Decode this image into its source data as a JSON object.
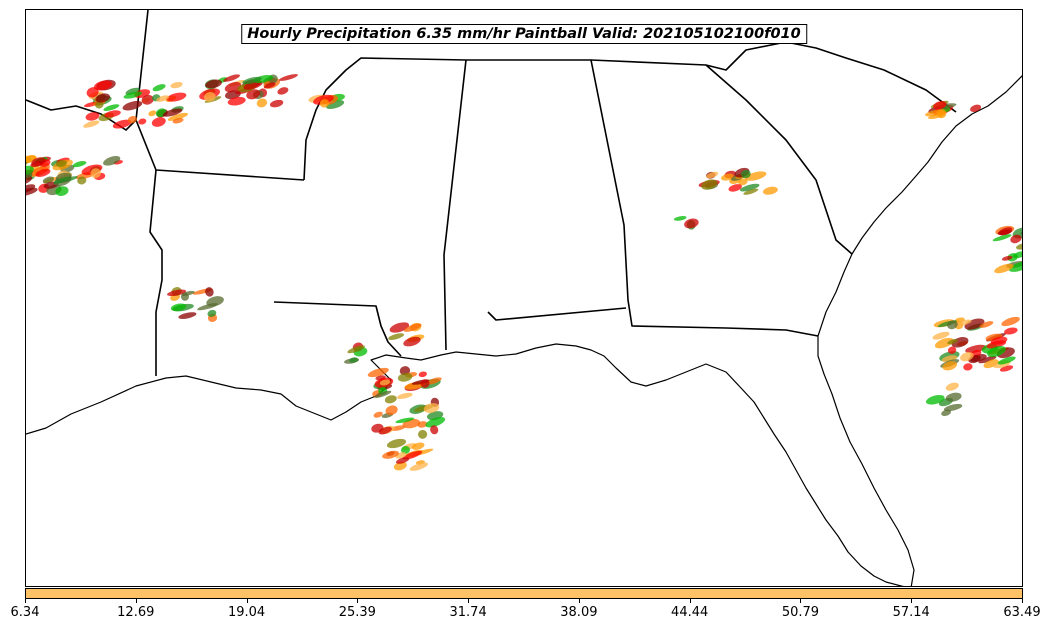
{
  "title": "Hourly Precipitation 6.35 mm/hr Paintball Valid: 202105102100f010",
  "colorbar": {
    "color": "#ffc266",
    "ticks": [
      "6.34",
      "12.69",
      "19.04",
      "25.39",
      "31.74",
      "38.09",
      "44.44",
      "50.79",
      "57.14",
      "63.49"
    ]
  },
  "member_colors": [
    "#ff0000",
    "#cc0000",
    "#ff6600",
    "#ff9900",
    "#00bb00",
    "#228b22",
    "#808000",
    "#8b0000",
    "#556b2f",
    "#ffb347"
  ]
}
